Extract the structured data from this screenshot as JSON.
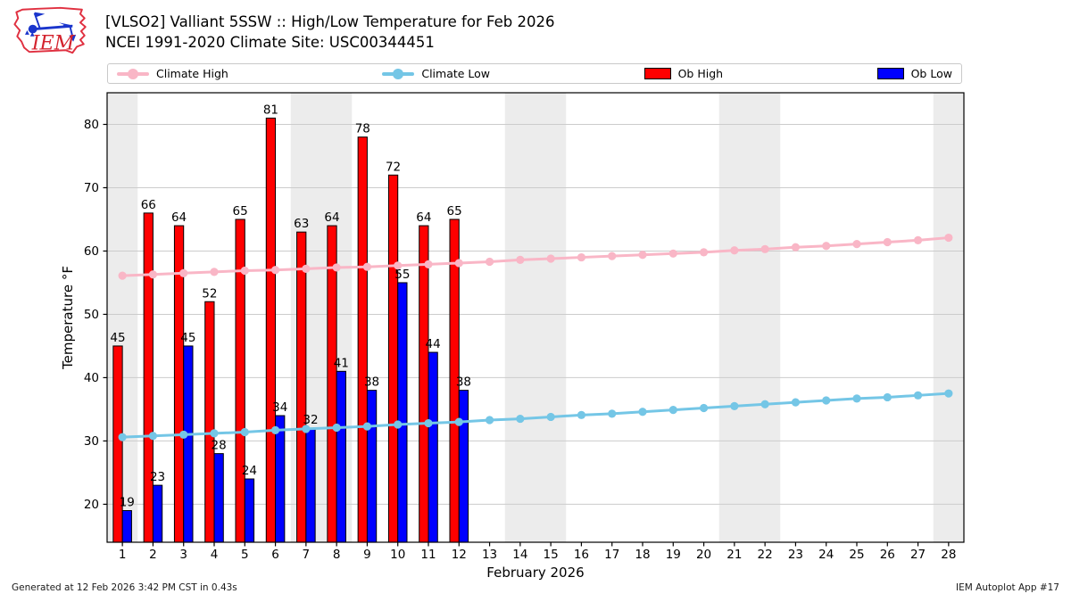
{
  "header": {
    "logo_text": "IEM",
    "title_line1": "[VLSO2] Valliant 5SSW :: High/Low Temperature for Feb 2026",
    "title_line2": "NCEI 1991-2020 Climate Site: USC00344451"
  },
  "legend": {
    "items": [
      {
        "label": "Climate High",
        "type": "line",
        "color": "#f9b6c6"
      },
      {
        "label": "Climate Low",
        "type": "line",
        "color": "#74c6e6"
      },
      {
        "label": "Ob High",
        "type": "swatch",
        "color": "#ff0000"
      },
      {
        "label": "Ob Low",
        "type": "swatch",
        "color": "#0000ff"
      }
    ]
  },
  "chart_data": {
    "type": "bar",
    "title": "[VLSO2] Valliant 5SSW :: High/Low Temperature for Feb 2026",
    "xlabel": "February 2026",
    "ylabel": "Temperature °F",
    "x": [
      1,
      2,
      3,
      4,
      5,
      6,
      7,
      8,
      9,
      10,
      11,
      12,
      13,
      14,
      15,
      16,
      17,
      18,
      19,
      20,
      21,
      22,
      23,
      24,
      25,
      26,
      27,
      28
    ],
    "xlim": [
      0.5,
      28.5
    ],
    "ylim": [
      14,
      85
    ],
    "yticks": [
      20,
      30,
      40,
      50,
      60,
      70,
      80
    ],
    "grid": "horizontal",
    "weekend_bands": [
      [
        0.5,
        1.5
      ],
      [
        6.5,
        8.5
      ],
      [
        13.5,
        15.5
      ],
      [
        20.5,
        22.5
      ],
      [
        27.5,
        28.5
      ]
    ],
    "band_color": "#ececec",
    "grid_color": "#cccccc",
    "series": [
      {
        "name": "Ob High",
        "type": "bar",
        "color": "#ff0000",
        "edge": "#000000",
        "days": [
          1,
          2,
          3,
          4,
          5,
          6,
          7,
          8,
          9,
          10,
          11,
          12
        ],
        "values": [
          45,
          66,
          64,
          52,
          65,
          81,
          63,
          64,
          78,
          72,
          64,
          65
        ]
      },
      {
        "name": "Ob Low",
        "type": "bar",
        "color": "#0000ff",
        "edge": "#000000",
        "days": [
          1,
          2,
          3,
          4,
          5,
          6,
          7,
          8,
          9,
          10,
          11,
          12
        ],
        "values": [
          19,
          23,
          45,
          28,
          24,
          34,
          32,
          41,
          38,
          55,
          44,
          38
        ]
      },
      {
        "name": "Climate High",
        "type": "line",
        "color": "#f9b6c6",
        "days": [
          1,
          2,
          3,
          4,
          5,
          6,
          7,
          8,
          9,
          10,
          11,
          12,
          13,
          14,
          15,
          16,
          17,
          18,
          19,
          20,
          21,
          22,
          23,
          24,
          25,
          26,
          27,
          28
        ],
        "values": [
          56.1,
          56.3,
          56.5,
          56.7,
          56.9,
          57.0,
          57.2,
          57.4,
          57.5,
          57.7,
          57.9,
          58.1,
          58.3,
          58.6,
          58.8,
          59.0,
          59.2,
          59.4,
          59.6,
          59.8,
          60.1,
          60.3,
          60.6,
          60.8,
          61.1,
          61.4,
          61.7,
          62.1
        ]
      },
      {
        "name": "Climate Low",
        "type": "line",
        "color": "#74c6e6",
        "days": [
          1,
          2,
          3,
          4,
          5,
          6,
          7,
          8,
          9,
          10,
          11,
          12,
          13,
          14,
          15,
          16,
          17,
          18,
          19,
          20,
          21,
          22,
          23,
          24,
          25,
          26,
          27,
          28
        ],
        "values": [
          30.6,
          30.8,
          31.0,
          31.2,
          31.4,
          31.7,
          31.9,
          32.1,
          32.3,
          32.6,
          32.8,
          33.0,
          33.3,
          33.5,
          33.8,
          34.1,
          34.3,
          34.6,
          34.9,
          35.2,
          35.5,
          35.8,
          36.1,
          36.4,
          36.7,
          36.9,
          37.2,
          37.5
        ]
      }
    ]
  },
  "footer": {
    "left": "Generated at 12 Feb 2026 3:42 PM CST in 0.43s",
    "right": "IEM Autoplot App #17"
  }
}
